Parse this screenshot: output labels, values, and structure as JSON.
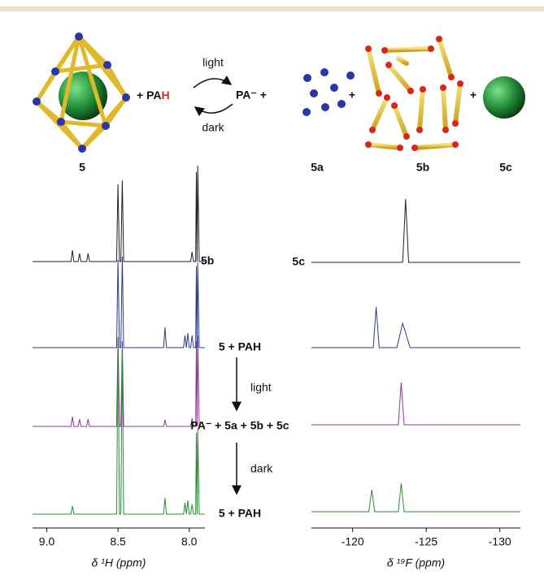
{
  "scheme": {
    "compound": "5",
    "reagent": "+ PA",
    "reagent_h": "H",
    "arrow_top": "light",
    "arrow_bottom": "dark",
    "product": "PA⁻ +",
    "plus": "+",
    "products": [
      "5a",
      "5b",
      "5c"
    ]
  },
  "chart_data": [
    {
      "type": "line",
      "x_label": "δ ¹H (ppm)",
      "xlim": [
        9.1,
        7.89
      ],
      "xticks": [
        {
          "value": 9,
          "label": "9.0"
        },
        8.5,
        {
          "value": 8,
          "label": "8.0"
        }
      ],
      "series": [
        {
          "name": "5b",
          "color": "#222222",
          "x": [
            9.1,
            8.83,
            8.82,
            8.81,
            8.78,
            8.77,
            8.76,
            8.72,
            8.71,
            8.7,
            8.51,
            8.5,
            8.49,
            8.48,
            8.47,
            8.46,
            7.99,
            7.98,
            7.97,
            7.955,
            7.95,
            7.945,
            7.94,
            7.93,
            7.89
          ],
          "values": [
            0,
            0,
            14,
            0,
            0,
            10,
            0,
            0,
            10,
            0,
            0,
            95,
            0,
            0,
            100,
            0,
            0,
            12,
            0,
            0,
            110,
            0,
            118,
            0,
            0
          ]
        },
        {
          "name": "5 + PAH",
          "color": "#2b3a8c",
          "x": [
            9.1,
            8.51,
            8.5,
            8.49,
            8.48,
            8.47,
            8.46,
            8.18,
            8.17,
            8.16,
            8.04,
            8.03,
            8.02,
            8.01,
            8.0,
            7.99,
            7.98,
            7.97,
            7.955,
            7.95,
            7.945,
            7.94,
            7.93,
            7.89
          ],
          "values": [
            0,
            0,
            108,
            0,
            0,
            112,
            0,
            0,
            25,
            0,
            0,
            15,
            0,
            18,
            0,
            0,
            15,
            0,
            0,
            100,
            0,
            105,
            0,
            0
          ]
        },
        {
          "name": "PA⁻ + 5a + 5b + 5c",
          "color": "#8b3a8f",
          "x": [
            9.1,
            8.83,
            8.82,
            8.81,
            8.78,
            8.77,
            8.76,
            8.72,
            8.71,
            8.7,
            8.51,
            8.5,
            8.49,
            8.48,
            8.47,
            8.46,
            8.18,
            8.17,
            8.16,
            7.99,
            7.98,
            7.97,
            7.955,
            7.95,
            7.945,
            7.94,
            7.93,
            7.89
          ],
          "values": [
            0,
            0,
            12,
            0,
            0,
            9,
            0,
            0,
            9,
            0,
            0,
            110,
            0,
            0,
            105,
            0,
            0,
            8,
            0,
            0,
            10,
            0,
            0,
            105,
            0,
            112,
            0,
            0
          ]
        },
        {
          "name": "5 + PAH",
          "color": "#2e8b3a",
          "x": [
            9.1,
            8.83,
            8.82,
            8.81,
            8.51,
            8.5,
            8.49,
            8.48,
            8.47,
            8.46,
            8.18,
            8.17,
            8.16,
            8.04,
            8.03,
            8.02,
            8.01,
            8.0,
            7.99,
            7.98,
            7.97,
            7.955,
            7.95,
            7.945,
            7.94,
            7.93,
            7.89
          ],
          "values": [
            0,
            0,
            10,
            0,
            0,
            215,
            0,
            0,
            200,
            0,
            0,
            20,
            0,
            0,
            14,
            0,
            17,
            0,
            0,
            12,
            0,
            0,
            100,
            0,
            105,
            0,
            0
          ]
        }
      ]
    },
    {
      "type": "line",
      "x_label": "δ ¹⁹F (ppm)",
      "xlim": [
        -117.2,
        -131.4
      ],
      "xticks": [
        -120,
        -125,
        -130
      ],
      "series": [
        {
          "name": "5c",
          "color": "#222222",
          "x": [
            -117.2,
            -123.4,
            -123.6,
            -123.8,
            -131.4
          ],
          "values": [
            0,
            0,
            78,
            0,
            0
          ]
        },
        {
          "color": "#2b3a8c",
          "x": [
            -117.2,
            -121.4,
            -121.6,
            -121.8,
            -123.0,
            -123.4,
            -123.9,
            -131.4
          ],
          "values": [
            0,
            0,
            50,
            0,
            0,
            30,
            0,
            0
          ]
        },
        {
          "color": "#8b3a8f",
          "x": [
            -117.2,
            -123.1,
            -123.3,
            -123.5,
            -131.4
          ],
          "values": [
            0,
            0,
            52,
            0,
            0
          ]
        },
        {
          "color": "#2e8b3a",
          "x": [
            -117.2,
            -121.1,
            -121.3,
            -121.5,
            -123.1,
            -123.3,
            -123.5,
            -131.4
          ],
          "values": [
            0,
            0,
            27,
            0,
            0,
            35,
            0,
            0
          ]
        }
      ]
    }
  ]
}
